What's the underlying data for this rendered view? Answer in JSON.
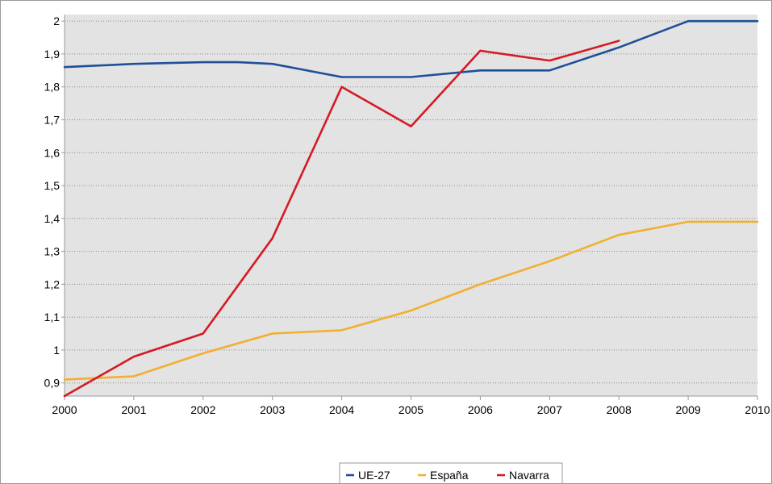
{
  "chart_data": {
    "type": "line",
    "title": "",
    "xlabel": "",
    "ylabel": "",
    "x": [
      2000,
      2001,
      2002,
      2003,
      2004,
      2005,
      2006,
      2007,
      2008,
      2009,
      2010
    ],
    "x_tick_labels": [
      "2000",
      "2001",
      "2002",
      "2003",
      "2004",
      "2005",
      "2006",
      "2007",
      "2008",
      "2009",
      "2010"
    ],
    "y_tick_labels": [
      "0,9",
      "1",
      "1,1",
      "1,2",
      "1,3",
      "1,4",
      "1,5",
      "1,6",
      "1,7",
      "1,8",
      "1,9",
      "2"
    ],
    "xlim": [
      2000,
      2010
    ],
    "ylim": [
      0.86,
      2.02
    ],
    "grid": "horizontal-dotted",
    "legend_placement": "bottom-center",
    "series": [
      {
        "name": "UE-27",
        "color": "#1f4f99",
        "points": [
          [
            2000,
            1.86
          ],
          [
            2001,
            1.87
          ],
          [
            2002,
            1.875
          ],
          [
            2002.5,
            1.875
          ],
          [
            2003,
            1.87
          ],
          [
            2004,
            1.83
          ],
          [
            2005,
            1.83
          ],
          [
            2006,
            1.85
          ],
          [
            2007,
            1.85
          ],
          [
            2008,
            1.92
          ],
          [
            2009,
            2.0
          ],
          [
            2010,
            2.0
          ]
        ]
      },
      {
        "name": "España",
        "color": "#f0b030",
        "points": [
          [
            2000,
            0.91
          ],
          [
            2001,
            0.92
          ],
          [
            2002,
            0.99
          ],
          [
            2003,
            1.05
          ],
          [
            2004,
            1.06
          ],
          [
            2005,
            1.12
          ],
          [
            2006,
            1.2
          ],
          [
            2007,
            1.27
          ],
          [
            2008,
            1.35
          ],
          [
            2009,
            1.39
          ],
          [
            2010,
            1.39
          ]
        ]
      },
      {
        "name": "Navarra",
        "color": "#d51a24",
        "points": [
          [
            2000,
            0.86
          ],
          [
            2001,
            0.98
          ],
          [
            2002,
            1.05
          ],
          [
            2003,
            1.34
          ],
          [
            2004,
            1.8
          ],
          [
            2005,
            1.68
          ],
          [
            2006,
            1.91
          ],
          [
            2007,
            1.88
          ],
          [
            2008,
            1.94
          ]
        ]
      }
    ]
  }
}
